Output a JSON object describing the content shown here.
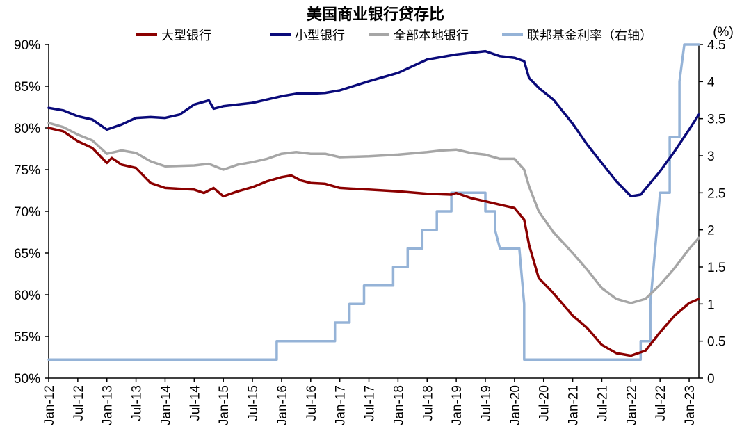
{
  "chart_data": {
    "type": "line",
    "title": "美国商业银行贷存比",
    "y_right_unit": "(%)",
    "y_left": {
      "min": 50,
      "max": 90,
      "step": 5,
      "tick_labels": [
        "50%",
        "55%",
        "60%",
        "65%",
        "70%",
        "75%",
        "80%",
        "85%",
        "90%"
      ]
    },
    "y_right": {
      "min": 0,
      "max": 4.5,
      "tick_labels": [
        "0",
        "0.5",
        "1",
        "1.5",
        "2",
        "2.5",
        "3",
        "3.5",
        "4",
        "4.5"
      ]
    },
    "x_ticks": [
      "Jan-12",
      "Jul-12",
      "Jan-13",
      "Jul-13",
      "Jan-14",
      "Jul-14",
      "Jan-15",
      "Jul-15",
      "Jan-16",
      "Jul-16",
      "Jan-17",
      "Jul-17",
      "Jan-18",
      "Jul-18",
      "Jan-19",
      "Jul-19",
      "Jan-20",
      "Jul-20",
      "Jan-21",
      "Jul-21",
      "Jan-22",
      "Jul-22",
      "Jan-23"
    ],
    "x_range": [
      "Jan-12",
      "Jan-23"
    ],
    "series": [
      {
        "name": "大型银行",
        "color": "#8B0000",
        "axis": "left",
        "points": [
          [
            "Jan-12",
            80.0
          ],
          [
            "Apr-12",
            79.6
          ],
          [
            "Jul-12",
            78.4
          ],
          [
            "Oct-12",
            77.6
          ],
          [
            "Jan-13",
            75.8
          ],
          [
            "Feb-13",
            76.4
          ],
          [
            "Apr-13",
            75.6
          ],
          [
            "Jul-13",
            75.2
          ],
          [
            "Oct-13",
            73.4
          ],
          [
            "Jan-14",
            72.8
          ],
          [
            "Jul-14",
            72.6
          ],
          [
            "Sep-14",
            72.2
          ],
          [
            "Nov-14",
            72.8
          ],
          [
            "Jan-15",
            71.8
          ],
          [
            "Apr-15",
            72.4
          ],
          [
            "Jul-15",
            72.9
          ],
          [
            "Oct-15",
            73.6
          ],
          [
            "Jan-16",
            74.1
          ],
          [
            "Mar-16",
            74.3
          ],
          [
            "May-16",
            73.7
          ],
          [
            "Jul-16",
            73.4
          ],
          [
            "Oct-16",
            73.3
          ],
          [
            "Jan-17",
            72.8
          ],
          [
            "Jul-17",
            72.6
          ],
          [
            "Jan-18",
            72.4
          ],
          [
            "Jul-18",
            72.1
          ],
          [
            "Dec-18",
            72.0
          ],
          [
            "Jan-19",
            72.2
          ],
          [
            "Apr-19",
            71.6
          ],
          [
            "Jul-19",
            71.2
          ],
          [
            "Oct-19",
            70.8
          ],
          [
            "Jan-20",
            70.4
          ],
          [
            "Mar-20",
            69.0
          ],
          [
            "Apr-20",
            66.0
          ],
          [
            "Jun-20",
            62.0
          ],
          [
            "Sep-20",
            60.2
          ],
          [
            "Jan-21",
            57.5
          ],
          [
            "Apr-21",
            56.0
          ],
          [
            "Jul-21",
            54.0
          ],
          [
            "Oct-21",
            53.0
          ],
          [
            "Jan-22",
            52.7
          ],
          [
            "Apr-22",
            53.3
          ],
          [
            "Jul-22",
            55.5
          ],
          [
            "Oct-22",
            57.5
          ],
          [
            "Jan-23",
            59.0
          ],
          [
            "Mar-23",
            59.5
          ]
        ]
      },
      {
        "name": "小型银行",
        "color": "#0A0A7A",
        "axis": "left",
        "points": [
          [
            "Jan-12",
            82.4
          ],
          [
            "Apr-12",
            82.1
          ],
          [
            "Jul-12",
            81.4
          ],
          [
            "Oct-12",
            81.0
          ],
          [
            "Jan-13",
            79.8
          ],
          [
            "Apr-13",
            80.4
          ],
          [
            "Jul-13",
            81.2
          ],
          [
            "Oct-13",
            81.3
          ],
          [
            "Jan-14",
            81.2
          ],
          [
            "Apr-14",
            81.6
          ],
          [
            "Jul-14",
            82.8
          ],
          [
            "Oct-14",
            83.3
          ],
          [
            "Nov-14",
            82.3
          ],
          [
            "Jan-15",
            82.6
          ],
          [
            "Apr-15",
            82.8
          ],
          [
            "Jul-15",
            83.0
          ],
          [
            "Oct-15",
            83.4
          ],
          [
            "Jan-16",
            83.8
          ],
          [
            "Apr-16",
            84.1
          ],
          [
            "Jul-16",
            84.1
          ],
          [
            "Oct-16",
            84.2
          ],
          [
            "Jan-17",
            84.5
          ],
          [
            "Jul-17",
            85.6
          ],
          [
            "Jan-18",
            86.6
          ],
          [
            "Jul-18",
            88.2
          ],
          [
            "Jan-19",
            88.8
          ],
          [
            "Apr-19",
            89.0
          ],
          [
            "Jul-19",
            89.2
          ],
          [
            "Oct-19",
            88.6
          ],
          [
            "Jan-20",
            88.4
          ],
          [
            "Mar-20",
            88.0
          ],
          [
            "Apr-20",
            86.0
          ],
          [
            "Jun-20",
            84.8
          ],
          [
            "Sep-20",
            83.4
          ],
          [
            "Jan-21",
            80.5
          ],
          [
            "Apr-21",
            78.0
          ],
          [
            "Jul-21",
            75.8
          ],
          [
            "Oct-21",
            73.6
          ],
          [
            "Jan-22",
            71.8
          ],
          [
            "Mar-22",
            72.0
          ],
          [
            "Jul-22",
            74.8
          ],
          [
            "Oct-22",
            77.2
          ],
          [
            "Jan-23",
            79.8
          ],
          [
            "Mar-23",
            81.6
          ]
        ]
      },
      {
        "name": "全部本地银行",
        "color": "#A6A6A6",
        "axis": "left",
        "points": [
          [
            "Jan-12",
            80.6
          ],
          [
            "Apr-12",
            80.1
          ],
          [
            "Jul-12",
            79.2
          ],
          [
            "Oct-12",
            78.5
          ],
          [
            "Jan-13",
            76.9
          ],
          [
            "Apr-13",
            77.3
          ],
          [
            "Jul-13",
            77.0
          ],
          [
            "Oct-13",
            76.0
          ],
          [
            "Jan-14",
            75.4
          ],
          [
            "Jul-14",
            75.5
          ],
          [
            "Oct-14",
            75.7
          ],
          [
            "Jan-15",
            75.0
          ],
          [
            "Apr-15",
            75.6
          ],
          [
            "Jul-15",
            75.9
          ],
          [
            "Oct-15",
            76.3
          ],
          [
            "Jan-16",
            76.9
          ],
          [
            "Apr-16",
            77.1
          ],
          [
            "Jul-16",
            76.9
          ],
          [
            "Oct-16",
            76.9
          ],
          [
            "Jan-17",
            76.5
          ],
          [
            "Jul-17",
            76.6
          ],
          [
            "Jan-18",
            76.8
          ],
          [
            "Jul-18",
            77.1
          ],
          [
            "Oct-18",
            77.3
          ],
          [
            "Jan-19",
            77.4
          ],
          [
            "Apr-19",
            77.0
          ],
          [
            "Jul-19",
            76.8
          ],
          [
            "Oct-19",
            76.3
          ],
          [
            "Jan-20",
            76.3
          ],
          [
            "Mar-20",
            75.0
          ],
          [
            "Apr-20",
            73.0
          ],
          [
            "Jun-20",
            70.0
          ],
          [
            "Sep-20",
            67.5
          ],
          [
            "Jan-21",
            65.0
          ],
          [
            "Apr-21",
            63.0
          ],
          [
            "Jul-21",
            60.8
          ],
          [
            "Oct-21",
            59.5
          ],
          [
            "Jan-22",
            59.0
          ],
          [
            "Apr-22",
            59.5
          ],
          [
            "Jul-22",
            61.2
          ],
          [
            "Oct-22",
            63.2
          ],
          [
            "Jan-23",
            65.5
          ],
          [
            "Mar-23",
            66.8
          ]
        ]
      },
      {
        "name": "联邦基金利率（右轴）",
        "color": "#95B3D7",
        "axis": "right",
        "points": [
          [
            "Jan-12",
            0.25
          ],
          [
            "Dec-15",
            0.25
          ],
          [
            "Dec-15",
            0.5
          ],
          [
            "Dec-16",
            0.5
          ],
          [
            "Dec-16",
            0.75
          ],
          [
            "Mar-17",
            0.75
          ],
          [
            "Mar-17",
            1.0
          ],
          [
            "Jun-17",
            1.0
          ],
          [
            "Jun-17",
            1.25
          ],
          [
            "Dec-17",
            1.25
          ],
          [
            "Dec-17",
            1.5
          ],
          [
            "Mar-18",
            1.5
          ],
          [
            "Mar-18",
            1.75
          ],
          [
            "Jun-18",
            1.75
          ],
          [
            "Jun-18",
            2.0
          ],
          [
            "Sep-18",
            2.0
          ],
          [
            "Sep-18",
            2.25
          ],
          [
            "Dec-18",
            2.25
          ],
          [
            "Dec-18",
            2.5
          ],
          [
            "Jul-19",
            2.5
          ],
          [
            "Jul-19",
            2.25
          ],
          [
            "Sep-19",
            2.25
          ],
          [
            "Sep-19",
            2.0
          ],
          [
            "Oct-19",
            1.75
          ],
          [
            "Feb-20",
            1.75
          ],
          [
            "Mar-20",
            1.0
          ],
          [
            "Mar-20",
            0.25
          ],
          [
            "Mar-22",
            0.25
          ],
          [
            "Mar-22",
            0.5
          ],
          [
            "May-22",
            0.5
          ],
          [
            "May-22",
            1.0
          ],
          [
            "Jun-22",
            1.75
          ],
          [
            "Jul-22",
            2.5
          ],
          [
            "Sep-22",
            2.5
          ],
          [
            "Sep-22",
            3.25
          ],
          [
            "Nov-22",
            3.25
          ],
          [
            "Nov-22",
            4.0
          ],
          [
            "Dec-22",
            4.5
          ],
          [
            "Mar-23",
            4.5
          ]
        ]
      }
    ]
  }
}
